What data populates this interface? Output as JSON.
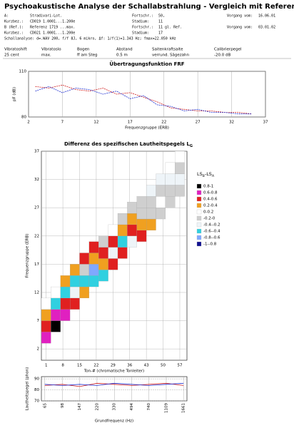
{
  "header": {
    "title": "Psychoakustische Analyse der Schallabstrahlung - Vergleich mit Referenz",
    "rows": [
      {
        "color": "#3030c0",
        "cells": [
          "A:",
          "Stradivari-Lot.",
          "Fortschr.:",
          "50,",
          "Vorgang vom:",
          "16.06.01"
        ]
      },
      {
        "color": "#3030c0",
        "cells": [
          "Kurzbez.:",
          "CD019 1.0001...1.200e",
          "Stadium:",
          "11"
        ]
      },
      {
        "color": "#d02020",
        "cells": [
          "B (Ref.):",
          "Referenz 1719 ...max.",
          "Fortschr.:",
          "11 gl. Ref.",
          "Vorgang vom:",
          "03.01.02"
        ]
      },
      {
        "color": "#d02020",
        "cells": [
          "Kurzbez.:",
          "CD021 1.0001...1.200e",
          "Stadium:",
          "17"
        ]
      },
      {
        "color": "#000000",
        "cells": [
          "Schallanalyse: d=.WAV 200, f/f 8J, 6 mikro, Δf: 1/f(1)=1.343 Hz; fmax=22.050 kHz"
        ]
      }
    ],
    "settings": {
      "headers": [
        "Vibratoshift",
        "Vibratoslo",
        "Bogen",
        "Abstand",
        "Saitenkraftsaite",
        "Calibrierpegel"
      ],
      "values": [
        "25 cent",
        "max.",
        "ff am Steg",
        "0.5 m",
        "verrund. Sägezahn",
        "-20.0 dB"
      ]
    }
  },
  "chart_data": [
    {
      "type": "line",
      "title": "Übertragungsfunktion FRF",
      "x_label": "Frequenzgruppe (ERB)",
      "y_label": "pF (dB)",
      "x": [
        3,
        5,
        7,
        9,
        11,
        13,
        15,
        17,
        19,
        21,
        23,
        25,
        27,
        29,
        31,
        33,
        35
      ],
      "series": [
        {
          "name": "A",
          "color": "#d02020",
          "values": [
            100,
            99,
            101,
            98,
            97,
            99,
            95,
            96,
            93,
            90,
            86,
            85,
            84,
            84,
            83,
            83,
            82
          ]
        },
        {
          "name": "B",
          "color": "#2030d0",
          "values": [
            97,
            100,
            96,
            99,
            98,
            95,
            97,
            92,
            94,
            88,
            87,
            84,
            85,
            83,
            83,
            82,
            82
          ]
        }
      ],
      "xlim": [
        2,
        37
      ],
      "xticks": [
        2,
        7,
        12,
        17,
        22,
        27,
        32,
        37
      ],
      "ylim": [
        80,
        110
      ],
      "yticks": [
        80,
        110
      ],
      "grid": true
    },
    {
      "type": "heatmap",
      "title": "Differenz des spezifischen Lautheitspegels L",
      "title_sub": "G",
      "x_label": "Ton-# (chromatische Tonleiter)",
      "y_label": "Frequenzgruppe (ERB)",
      "legend_title": [
        "LS",
        "B",
        "-LS",
        "A"
      ],
      "legend": [
        {
          "label": "0.8-1",
          "range": [
            0.8,
            1
          ],
          "color": "#000000"
        },
        {
          "label": "0.6-0.8",
          "range": [
            0.6,
            0.8
          ],
          "color": "#e020c0"
        },
        {
          "label": "0.4-0.6",
          "range": [
            0.4,
            0.6
          ],
          "color": "#e02020"
        },
        {
          "label": "0.2-0.4",
          "range": [
            0.2,
            0.4
          ],
          "color": "#f0a020"
        },
        {
          "label": "0-0.2",
          "range": [
            0,
            0.2
          ],
          "color": "#ffffff"
        },
        {
          "label": "-0.2-0",
          "range": [
            -0.2,
            0
          ],
          "color": "#cfcfcf"
        },
        {
          "label": "-0.4--0.2",
          "range": [
            -0.4,
            -0.2
          ],
          "color": "#eef4f8"
        },
        {
          "label": "-0.6--0.4",
          "range": [
            -0.6,
            -0.4
          ],
          "color": "#30d0e0"
        },
        {
          "label": "-0.8--0.6",
          "range": [
            -0.8,
            -0.6
          ],
          "color": "#80a8ff"
        },
        {
          "label": "-1--0.8",
          "range": [
            -1,
            -0.8
          ],
          "color": "#101090"
        }
      ],
      "cells": [
        [
          1,
          4,
          0.7
        ],
        [
          1,
          6,
          0.5
        ],
        [
          1,
          8,
          0.3
        ],
        [
          1,
          10,
          0.1
        ],
        [
          5,
          6,
          0.9
        ],
        [
          5,
          8,
          0.7
        ],
        [
          5,
          10,
          -0.5
        ],
        [
          5,
          12,
          0.1
        ],
        [
          9,
          8,
          0.7
        ],
        [
          9,
          10,
          0.5
        ],
        [
          9,
          12,
          -0.5
        ],
        [
          9,
          14,
          0.3
        ],
        [
          13,
          10,
          0.5
        ],
        [
          13,
          12,
          -0.3
        ],
        [
          13,
          14,
          -0.5
        ],
        [
          13,
          16,
          0.3
        ],
        [
          17,
          12,
          0.3
        ],
        [
          17,
          14,
          -0.5
        ],
        [
          17,
          16,
          -0.1
        ],
        [
          17,
          18,
          0.5
        ],
        [
          21,
          14,
          -0.5
        ],
        [
          21,
          16,
          -0.7
        ],
        [
          21,
          18,
          0.3
        ],
        [
          21,
          20,
          0.5
        ],
        [
          25,
          15,
          -0.5
        ],
        [
          25,
          17,
          0.3
        ],
        [
          25,
          19,
          0.5
        ],
        [
          25,
          21,
          -0.1
        ],
        [
          29,
          17,
          0.5
        ],
        [
          29,
          19,
          -0.3
        ],
        [
          29,
          21,
          0.5
        ],
        [
          29,
          23,
          0.1
        ],
        [
          33,
          19,
          0.5
        ],
        [
          33,
          21,
          -0.5
        ],
        [
          33,
          23,
          0.3
        ],
        [
          33,
          25,
          -0.1
        ],
        [
          37,
          21,
          -0.3
        ],
        [
          37,
          23,
          0.5
        ],
        [
          37,
          25,
          0.3
        ],
        [
          37,
          27,
          -0.1
        ],
        [
          41,
          22,
          0.5
        ],
        [
          41,
          24,
          0.3
        ],
        [
          41,
          26,
          -0.1
        ],
        [
          41,
          28,
          -0.1
        ],
        [
          45,
          24,
          0.3
        ],
        [
          45,
          26,
          -0.1
        ],
        [
          45,
          28,
          -0.1
        ],
        [
          45,
          30,
          -0.3
        ],
        [
          49,
          26,
          -0.1
        ],
        [
          49,
          28,
          0.1
        ],
        [
          49,
          30,
          -0.1
        ],
        [
          49,
          32,
          -0.3
        ],
        [
          53,
          28,
          -0.1
        ],
        [
          53,
          30,
          -0.1
        ],
        [
          53,
          32,
          -0.3
        ],
        [
          53,
          34,
          0.1
        ],
        [
          57,
          30,
          -0.1
        ],
        [
          57,
          32,
          -0.3
        ],
        [
          57,
          34,
          -0.1
        ],
        [
          57,
          36,
          0.1
        ]
      ],
      "xlim": [
        -1,
        60
      ],
      "xticks": [
        1,
        8,
        15,
        22,
        29,
        36,
        43,
        50,
        57
      ],
      "ylim": [
        0,
        37
      ],
      "yticks": [
        2,
        7,
        12,
        17,
        22,
        27,
        32,
        37
      ],
      "grid": true
    },
    {
      "type": "line",
      "x_label": "Grundfrequenz (Hz)",
      "y_label": "Lautheitspegel (phon)",
      "x": [
        65,
        98,
        147,
        220,
        330,
        494,
        740,
        1109,
        1661
      ],
      "series": [
        {
          "name": "A",
          "color": "#d02020",
          "values": [
            84,
            85,
            83,
            86,
            85,
            84,
            85,
            86,
            84
          ]
        },
        {
          "name": "B",
          "color": "#2030d0",
          "values": [
            85,
            84,
            85,
            84,
            86,
            85,
            84,
            85,
            86
          ]
        }
      ],
      "xlog": true,
      "xlim": [
        60,
        1800
      ],
      "xticks": [
        65,
        98,
        147,
        220,
        330,
        494,
        740,
        1109,
        1661
      ],
      "ylim": [
        70,
        92
      ],
      "yticks": [
        70,
        80,
        90
      ],
      "grid": true
    }
  ]
}
